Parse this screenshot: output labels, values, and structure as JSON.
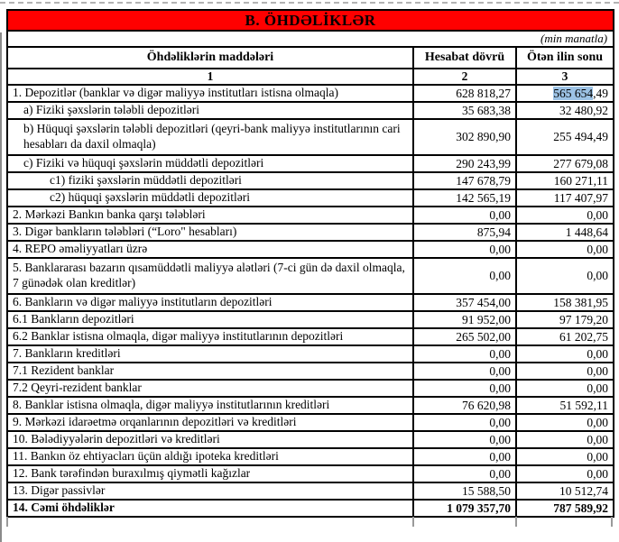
{
  "colors": {
    "title_bg": "#FF0000",
    "title_text": "#000000",
    "highlight": "#9DC3E6",
    "border": "#000000"
  },
  "table": {
    "title": "B. ÖHDƏLİKLƏR",
    "unit_note": "(min manatla)",
    "columns": [
      "Öhdəliklərin maddələri",
      "Hesabat dövrü",
      "Ötən ilin sonu"
    ],
    "column_numbers": [
      "1",
      "2",
      "3"
    ],
    "rows": [
      {
        "label": "1. Depozitlər (banklar və digər maliyyə institutları istisna olmaqla)",
        "current": "628 818,27",
        "prev": "565 654,49",
        "indent": 0,
        "bold": false,
        "tall": false,
        "prev_highlight": "565 654"
      },
      {
        "label": "a)  Fiziki şəxslərin tələbli depozitləri",
        "current": "35 683,38",
        "prev": "32 480,92",
        "indent": 1,
        "bold": false,
        "tall": false
      },
      {
        "label": "b) Hüquqi şəxslərin tələbli depozitləri (qeyri-bank maliyyə institutlarının cari hesabları da daxil olmaqla)",
        "current": "302 890,90",
        "prev": "255 494,49",
        "indent": 1,
        "bold": false,
        "tall": true
      },
      {
        "label": "c) Fiziki və hüquqi şəxslərin müddətli depozitləri",
        "current": "290 243,99",
        "prev": "277 679,08",
        "indent": 1,
        "bold": false,
        "tall": false
      },
      {
        "label": "c1) fiziki şəxslərin müddətli depozitləri",
        "current": "147 678,79",
        "prev": "160 271,11",
        "indent": 2,
        "bold": false,
        "tall": false
      },
      {
        "label": "c2) hüquqi şəxslərin müddətli depozitləri",
        "current": "142 565,19",
        "prev": "117 407,97",
        "indent": 2,
        "bold": false,
        "tall": false
      },
      {
        "label": "2. Mərkəzi Bankın banka qarşı tələbləri",
        "current": "0,00",
        "prev": "0,00",
        "indent": 0,
        "bold": false,
        "tall": false
      },
      {
        "label": "3. Digər bankların tələbləri (“Loro\" hesabları)",
        "current": "875,94",
        "prev": "1 448,64",
        "indent": 0,
        "bold": false,
        "tall": false
      },
      {
        "label": "4. REPO əməliyyatları  üzrə",
        "current": "0,00",
        "prev": "0,00",
        "indent": 0,
        "bold": false,
        "tall": false
      },
      {
        "label": "5. Banklararası bazarın qısamüddətli maliyyə alətləri (7-ci gün də daxil olmaqla, 7 günədək olan kreditlər)",
        "current": "0,00",
        "prev": "0,00",
        "indent": 0,
        "bold": false,
        "tall": true
      },
      {
        "label": "6. Bankların və digər maliyyə institutların depozitləri",
        "current": "357 454,00",
        "prev": "158 381,95",
        "indent": 0,
        "bold": false,
        "tall": false
      },
      {
        "label": "6.1  Bankların depozitləri",
        "current": "91 952,00",
        "prev": "97 179,20",
        "indent": 0,
        "bold": false,
        "tall": false
      },
      {
        "label": "6.2 Banklar istisna olmaqla, digər maliyyə institutlarının depozitləri",
        "current": "265 502,00",
        "prev": "61 202,75",
        "indent": 0,
        "bold": false,
        "tall": false
      },
      {
        "label": "7. Bankların kreditləri",
        "current": "0,00",
        "prev": "0,00",
        "indent": 0,
        "bold": false,
        "tall": false
      },
      {
        "label": "7.1 Rezident banklar",
        "current": "0,00",
        "prev": "0,00",
        "indent": 0,
        "bold": false,
        "tall": false
      },
      {
        "label": "7.2 Qeyri-rezident banklar",
        "current": "0,00",
        "prev": "0,00",
        "indent": 0,
        "bold": false,
        "tall": false
      },
      {
        "label": "8. Banklar istisna olmaqla, digər maliyyə institutlarının kreditləri",
        "current": "76 620,98",
        "prev": "51 592,11",
        "indent": 0,
        "bold": false,
        "tall": false
      },
      {
        "label": "9. Mərkəzi idarəetmə orqanlarının depozitləri və kreditləri",
        "current": "0,00",
        "prev": "0,00",
        "indent": 0,
        "bold": false,
        "tall": false
      },
      {
        "label": "10. Bələdiyyələrin depozitləri və kreditləri",
        "current": "0,00",
        "prev": "0,00",
        "indent": 0,
        "bold": false,
        "tall": false
      },
      {
        "label": "11. Bankın öz ehtiyacları üçün aldığı ipoteka kreditləri",
        "current": "0,00",
        "prev": "0,00",
        "indent": 0,
        "bold": false,
        "tall": false
      },
      {
        "label": "12. Bank tərəfindən buraxılmış qiymətli kağızlar",
        "current": "0,00",
        "prev": "0,00",
        "indent": 0,
        "bold": false,
        "tall": false
      },
      {
        "label": "13. Digər passivlər",
        "current": "15 588,50",
        "prev": "10 512,74",
        "indent": 0,
        "bold": false,
        "tall": false
      },
      {
        "label": "14. Cəmi öhdəliklər",
        "current": "1 079 357,70",
        "prev": "787 589,92",
        "indent": 0,
        "bold": true,
        "tall": false
      }
    ]
  }
}
